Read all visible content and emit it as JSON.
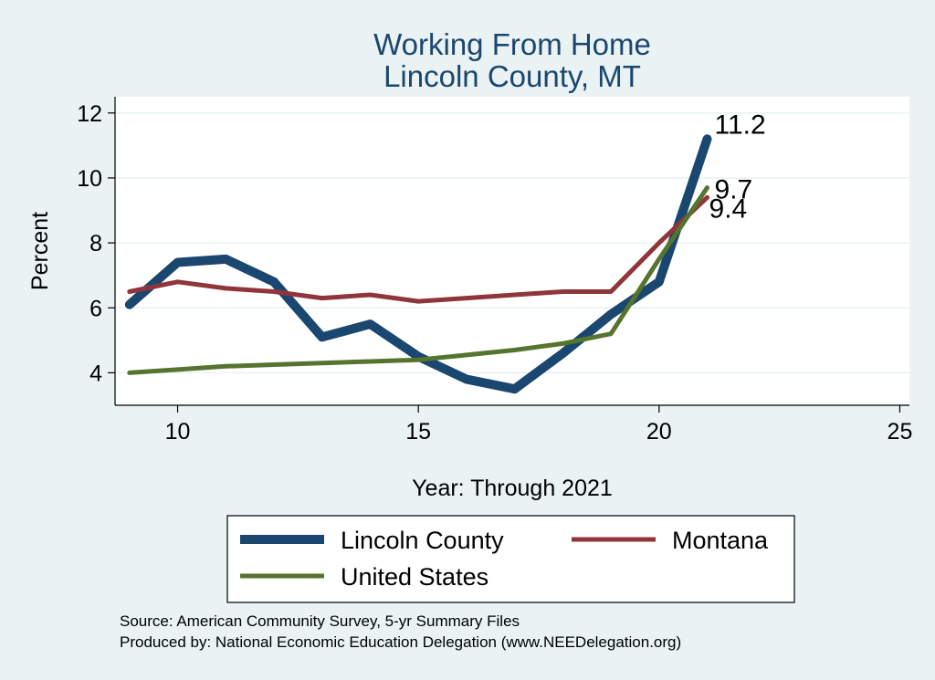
{
  "chart_data": {
    "type": "line",
    "title": "Working From Home",
    "subtitle": "Lincoln County, MT",
    "xlabel": "Year: Through 2021",
    "ylabel": "Percent",
    "xlim": [
      8.7,
      25.2
    ],
    "ylim": [
      3.0,
      12.5
    ],
    "xticks": [
      10,
      15,
      20,
      25
    ],
    "yticks": [
      4,
      6,
      8,
      10,
      12
    ],
    "grid": true,
    "legend_position": "bottom",
    "series": [
      {
        "name": "Lincoln County",
        "color": "#1a476f",
        "x": [
          9,
          10,
          11,
          12,
          13,
          14,
          15,
          16,
          17,
          18,
          19,
          20,
          21
        ],
        "y": [
          6.1,
          7.4,
          7.5,
          6.8,
          5.1,
          5.5,
          4.5,
          3.8,
          3.5,
          4.6,
          5.8,
          6.8,
          11.2
        ],
        "end_label": "11.2"
      },
      {
        "name": "Montana",
        "color": "#90353b",
        "x": [
          9,
          10,
          11,
          12,
          13,
          14,
          15,
          16,
          17,
          18,
          19,
          20,
          21
        ],
        "y": [
          6.5,
          6.8,
          6.6,
          6.5,
          6.3,
          6.4,
          6.2,
          6.3,
          6.4,
          6.5,
          6.5,
          8.0,
          9.4
        ],
        "end_label": "9.4"
      },
      {
        "name": "United States",
        "color": "#55752f",
        "x": [
          9,
          10,
          11,
          12,
          13,
          14,
          15,
          16,
          17,
          18,
          19,
          20,
          21
        ],
        "y": [
          4.0,
          4.1,
          4.2,
          4.25,
          4.3,
          4.35,
          4.4,
          4.55,
          4.7,
          4.9,
          5.2,
          7.5,
          9.7
        ],
        "end_label": "9.7"
      }
    ]
  },
  "notes": {
    "source": "Source: American Community Survey, 5-yr Summary Files",
    "produced_by": "Produced by: National Economic Education Delegation (www.NEEDelegation.org)"
  }
}
